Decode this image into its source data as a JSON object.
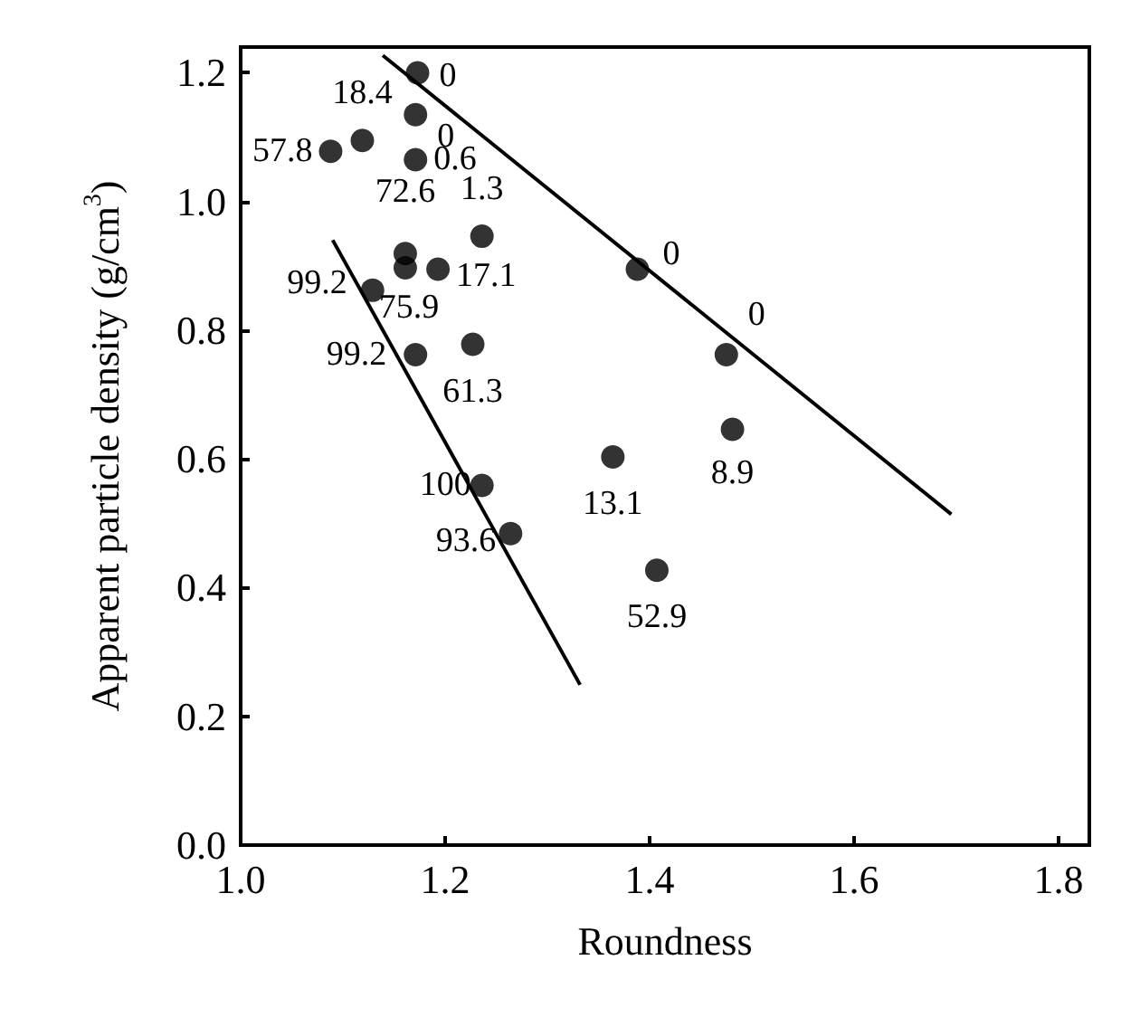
{
  "chart_data": {
    "type": "scatter",
    "xlabel": "Roundness",
    "ylabel": "Apparent particle density (g/cm$^{3}$)",
    "xlim": [
      1.0,
      1.83
    ],
    "xticks": [
      {
        "value": 1.0,
        "label": "1.0"
      },
      1.2,
      1.4,
      1.6,
      1.8
    ],
    "ylim": [
      0,
      1.24
    ],
    "yticks": [
      {
        "value": 0,
        "label": "0.0"
      },
      0.2,
      0.4,
      0.6,
      0.8,
      {
        "value": 1.0,
        "label": "1.0"
      },
      1.2
    ],
    "grid": false,
    "marker": "circle",
    "series": [
      {
        "color": "#000000",
        "x": [
          1.173,
          1.171,
          1.171,
          1.119,
          1.088,
          1.236,
          1.161,
          1.161,
          1.193,
          1.129,
          1.171,
          1.227,
          1.236,
          1.264,
          1.388,
          1.475,
          1.481,
          1.364,
          1.407
        ],
        "values": [
          1.2,
          1.135,
          1.065,
          1.095,
          1.078,
          0.946,
          0.919,
          0.897,
          0.895,
          0.862,
          0.762,
          0.778,
          0.559,
          0.484,
          0.895,
          0.762,
          0.646,
          0.603,
          0.427
        ]
      },
      {
        "type": "line",
        "color": "#000000",
        "marker": "none",
        "line_style": "solid",
        "x": [
          1.139,
          1.695
        ],
        "values": [
          1.227,
          0.514
        ]
      },
      {
        "type": "line",
        "color": "#000000",
        "marker": "none",
        "line_style": "solid",
        "x": [
          1.09,
          1.332
        ],
        "values": [
          0.94,
          0.249
        ]
      }
    ],
    "annotations": [
      {
        "text": "0",
        "x": 1.173,
        "y": 1.2
      },
      {
        "text": "0",
        "x": 1.171,
        "y": 1.135
      },
      {
        "text": "0.6",
        "x": 1.171,
        "y": 1.065
      },
      {
        "text": "18.4",
        "x": 1.119,
        "y": 1.095
      },
      {
        "text": "57.8",
        "x": 1.088,
        "y": 1.078
      },
      {
        "text": "1.3",
        "x": 1.236,
        "y": 0.946
      },
      {
        "text": "72.6",
        "x": 1.161,
        "y": 0.919
      },
      {
        "text": "75.9",
        "x": 1.161,
        "y": 0.897
      },
      {
        "text": "17.1",
        "x": 1.193,
        "y": 0.895
      },
      {
        "text": "99.2",
        "x": 1.129,
        "y": 0.862
      },
      {
        "text": "99.2",
        "x": 1.171,
        "y": 0.762
      },
      {
        "text": "61.3",
        "x": 1.227,
        "y": 0.778
      },
      {
        "text": "100",
        "x": 1.236,
        "y": 0.559
      },
      {
        "text": "93.6",
        "x": 1.264,
        "y": 0.484
      },
      {
        "text": "0",
        "x": 1.388,
        "y": 0.895
      },
      {
        "text": "0",
        "x": 1.475,
        "y": 0.762
      },
      {
        "text": "8.9",
        "x": 1.481,
        "y": 0.646
      },
      {
        "text": "13.1",
        "x": 1.364,
        "y": 0.603
      },
      {
        "text": "52.9",
        "x": 1.407,
        "y": 0.427
      }
    ]
  }
}
